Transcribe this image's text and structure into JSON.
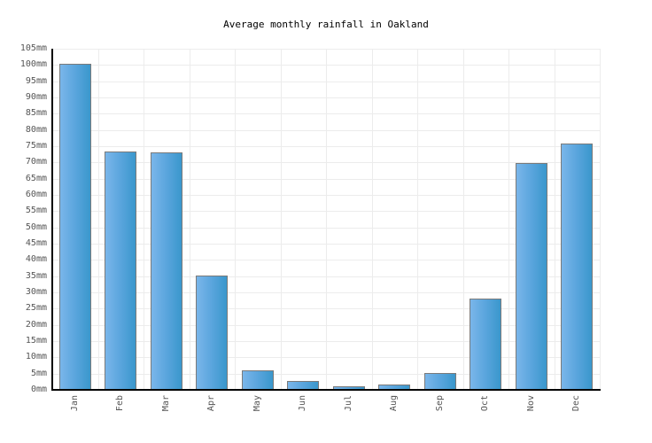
{
  "chart_data": {
    "type": "bar",
    "title": "Average monthly rainfall in Oakland",
    "xlabel": "",
    "ylabel": "",
    "unit": "mm",
    "categories": [
      "Jan",
      "Feb",
      "Mar",
      "Apr",
      "May",
      "Jun",
      "Jul",
      "Aug",
      "Sep",
      "Oct",
      "Nov",
      "Dec"
    ],
    "values": [
      100.4,
      73.4,
      73.1,
      35.2,
      6.0,
      2.7,
      1.0,
      1.6,
      5.2,
      28.1,
      69.8,
      75.8
    ],
    "ylim": [
      0,
      105
    ],
    "yticks": [
      "0mm",
      "5mm",
      "10mm",
      "15mm",
      "20mm",
      "25mm",
      "30mm",
      "35mm",
      "40mm",
      "45mm",
      "50mm",
      "55mm",
      "60mm",
      "65mm",
      "70mm",
      "75mm",
      "80mm",
      "85mm",
      "90mm",
      "95mm",
      "100mm",
      "105mm"
    ],
    "grid": true,
    "legend": null,
    "colors": {
      "bar_light": "#7ab6ea",
      "bar_dark": "#3a97cc",
      "bar_border": "#7a7a7a",
      "grid": "#ececec"
    }
  }
}
